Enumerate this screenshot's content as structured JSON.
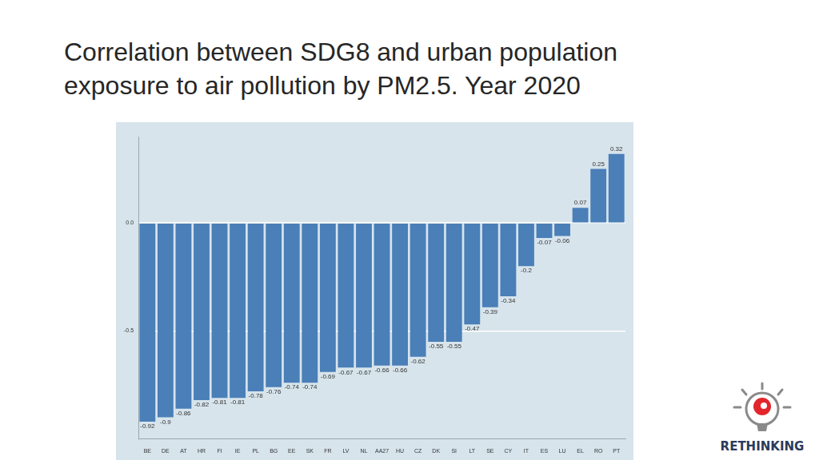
{
  "chart_data": {
    "type": "bar",
    "title": "Correlation between SDG8 and urban population exposure to air pollution by PM2.5. Year 2020",
    "categories": [
      "BE",
      "DE",
      "AT",
      "HR",
      "FI",
      "IE",
      "PL",
      "BG",
      "EE",
      "SK",
      "FR",
      "LV",
      "NL",
      "AA27",
      "HU",
      "CZ",
      "DK",
      "SI",
      "LT",
      "SE",
      "CY",
      "IT",
      "ES",
      "LU",
      "EL",
      "RO",
      "PT"
    ],
    "values": [
      -0.92,
      -0.9,
      -0.86,
      -0.82,
      -0.81,
      -0.81,
      -0.78,
      -0.76,
      -0.74,
      -0.74,
      -0.69,
      -0.67,
      -0.67,
      -0.66,
      -0.66,
      -0.62,
      -0.55,
      -0.55,
      -0.47,
      -0.39,
      -0.34,
      -0.2,
      -0.07,
      -0.06,
      0.07,
      0.25,
      0.32
    ],
    "color": "#4a7fb8",
    "ylim": [
      -1,
      0.4
    ],
    "yticks": [
      -0.5,
      {
        "value": 0,
        "label": "0.0"
      }
    ],
    "grid": true,
    "data_labels": true
  },
  "logo_text": "RETHINKING"
}
